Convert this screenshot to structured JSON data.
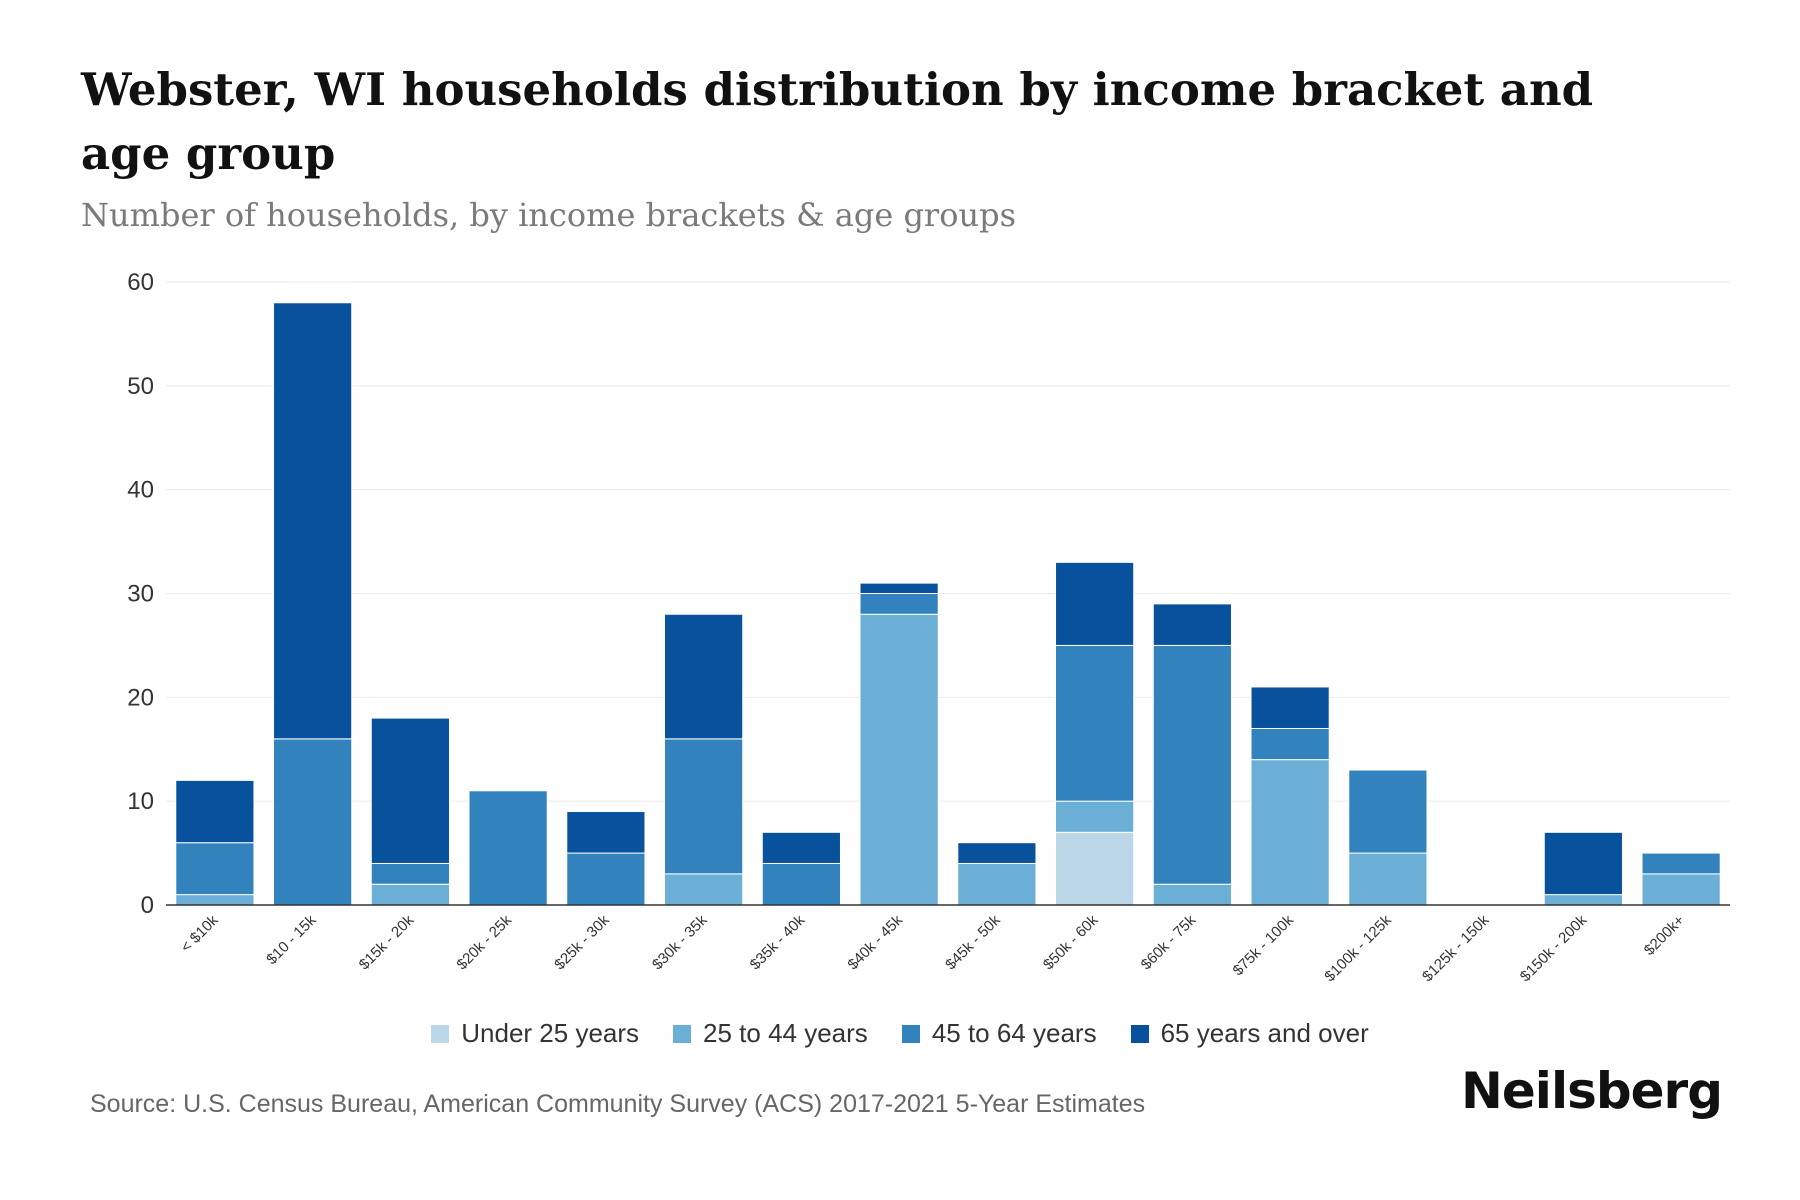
{
  "chart_data": {
    "type": "bar",
    "stacked": true,
    "title": "Webster, WI households distribution by income bracket and age group",
    "subtitle": "Number of households, by income brackets & age groups",
    "xlabel": "",
    "ylabel": "",
    "ylim": [
      0,
      60
    ],
    "yticks": [
      0,
      10,
      20,
      30,
      40,
      50,
      60
    ],
    "grid": true,
    "legend_position": "bottom",
    "categories": [
      "< $10k",
      "$10 - 15k",
      "$15k - 20k",
      "$20k - 25k",
      "$25k - 30k",
      "$30k - 35k",
      "$35k - 40k",
      "$40k - 45k",
      "$45k - 50k",
      "$50k - 60k",
      "$60k - 75k",
      "$75k - 100k",
      "$100k - 125k",
      "$125k - 150k",
      "$150k - 200k",
      "$200k+"
    ],
    "series": [
      {
        "name": "Under 25 years",
        "color": "#bcd7e8",
        "values": [
          0,
          0,
          0,
          0,
          0,
          0,
          0,
          0,
          0,
          7,
          0,
          0,
          0,
          0,
          0,
          0
        ]
      },
      {
        "name": "25 to 44 years",
        "color": "#6baed6",
        "values": [
          1,
          0,
          2,
          0,
          0,
          3,
          0,
          28,
          4,
          3,
          2,
          14,
          5,
          0,
          1,
          3
        ]
      },
      {
        "name": "45 to 64 years",
        "color": "#3182bd",
        "values": [
          5,
          16,
          2,
          11,
          5,
          13,
          4,
          2,
          0,
          15,
          23,
          3,
          8,
          0,
          0,
          2
        ]
      },
      {
        "name": "65 years and over",
        "color": "#08519c",
        "values": [
          6,
          42,
          14,
          0,
          4,
          12,
          3,
          1,
          2,
          8,
          4,
          4,
          0,
          0,
          6,
          0
        ]
      }
    ]
  },
  "footer": {
    "source": "Source: U.S. Census Bureau, American Community Survey (ACS) 2017-2021 5-Year Estimates",
    "brand": "Neilsberg"
  }
}
